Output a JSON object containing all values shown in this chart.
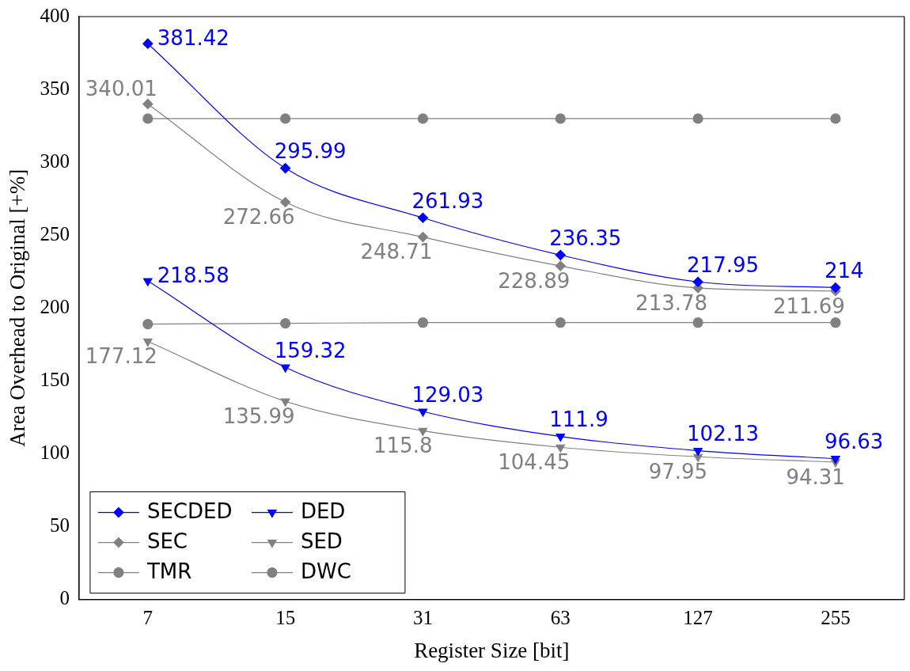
{
  "chart_data": {
    "type": "line",
    "xlabel": "Register Size [bit]",
    "ylabel": "Area Overhead to Original [+%]",
    "categories": [
      "7",
      "15",
      "31",
      "63",
      "127",
      "255"
    ],
    "ylim": [
      0,
      400
    ],
    "yticks": [
      0,
      50,
      100,
      150,
      200,
      250,
      300,
      350,
      400
    ],
    "grid": false,
    "legend": "bottom left",
    "series": [
      {
        "name": "SECDED",
        "color": "#0000ff",
        "marker": "diamond",
        "values": [
          381.42,
          295.99,
          261.93,
          236.35,
          217.95,
          214
        ],
        "value_labels": [
          "381.42",
          "295.99",
          "261.93",
          "236.35",
          "217.95",
          "214"
        ]
      },
      {
        "name": "DED",
        "color": "#0000ff",
        "marker": "triangle",
        "values": [
          218.58,
          159.32,
          129.03,
          111.9,
          102.13,
          96.63
        ],
        "value_labels": [
          "218.58",
          "159.32",
          "129.03",
          "111.9",
          "102.13",
          "96.63"
        ]
      },
      {
        "name": "SEC",
        "color": "#808080",
        "marker": "diamond",
        "values": [
          340.01,
          272.66,
          248.71,
          228.89,
          213.78,
          211.69
        ],
        "value_labels": [
          "340.01",
          "272.66",
          "248.71",
          "228.89",
          "213.78",
          "211.69"
        ]
      },
      {
        "name": "SED",
        "color": "#808080",
        "marker": "triangle",
        "values": [
          177.12,
          135.99,
          115.8,
          104.45,
          97.95,
          94.31
        ],
        "value_labels": [
          "177.12",
          "135.99",
          "115.8",
          "104.45",
          "97.95",
          "94.31"
        ]
      },
      {
        "name": "TMR",
        "color": "#808080",
        "marker": "circle",
        "values": [
          330,
          330,
          330,
          330,
          330,
          330
        ]
      },
      {
        "name": "DWC",
        "color": "#808080",
        "marker": "circle",
        "values": [
          189,
          189.5,
          190,
          190,
          190,
          190
        ]
      }
    ]
  }
}
